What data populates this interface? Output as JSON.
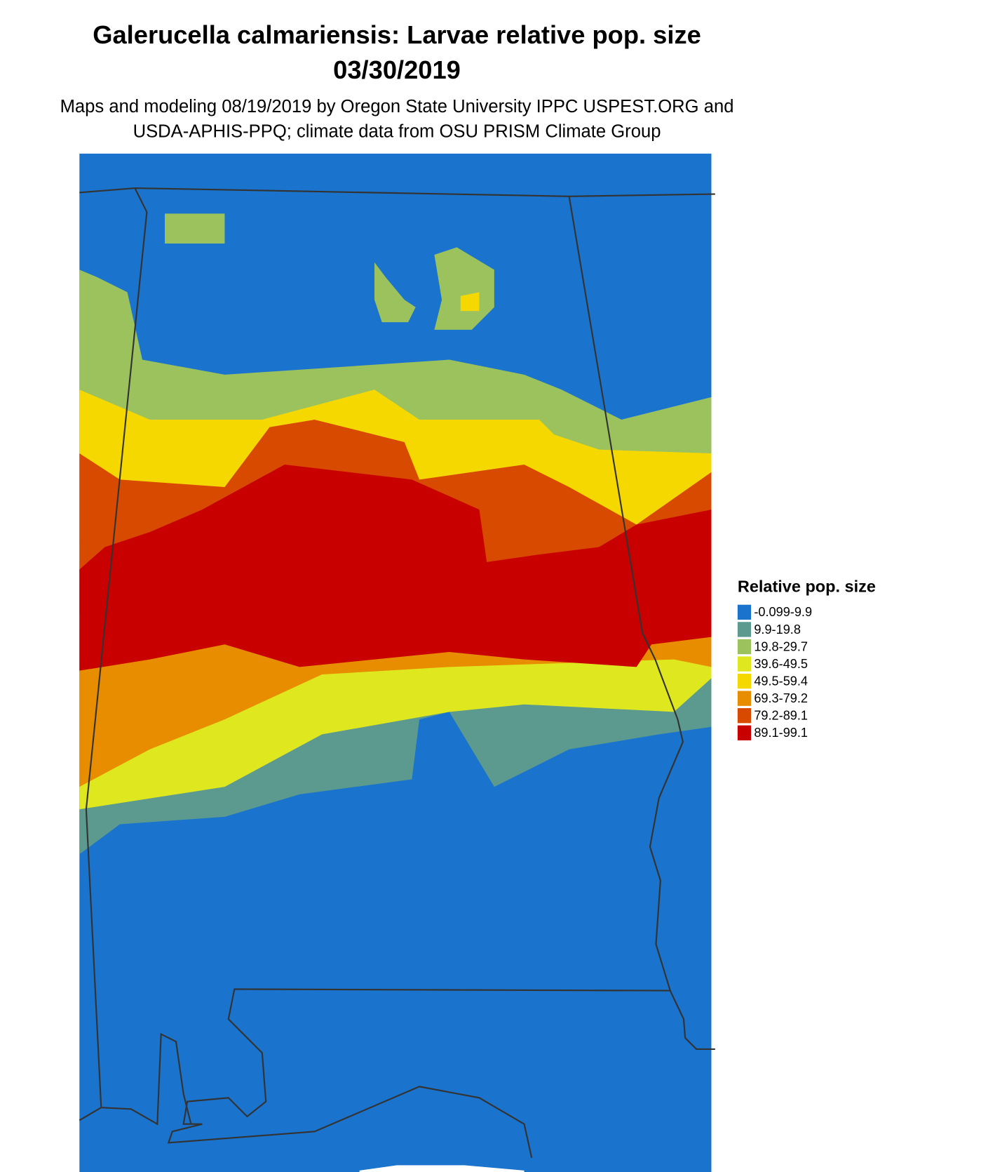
{
  "title": "Galerucella calmariensis: Larvae relative pop. size",
  "date": "03/30/2019",
  "subtitle_lines": [
    "Maps and modeling 08/19/2019 by Oregon State University IPPC USPEST.ORG and",
    "USDA-APHIS-PPQ; climate data from OSU PRISM Climate Group"
  ],
  "legend": {
    "title": "Relative pop. size",
    "items": [
      {
        "label": "-0.099-9.9",
        "color": "#1a73cc"
      },
      {
        "label": "9.9-19.8",
        "color": "#5c9a90"
      },
      {
        "label": "19.8-29.7",
        "color": "#9cc25e"
      },
      {
        "label": "39.6-49.5",
        "color": "#dfe81f"
      },
      {
        "label": "49.5-59.4",
        "color": "#f5d800"
      },
      {
        "label": "69.3-79.2",
        "color": "#e88c00"
      },
      {
        "label": "79.2-89.1",
        "color": "#d84a00"
      },
      {
        "label": "89.1-99.1",
        "color": "#c80000"
      }
    ]
  }
}
